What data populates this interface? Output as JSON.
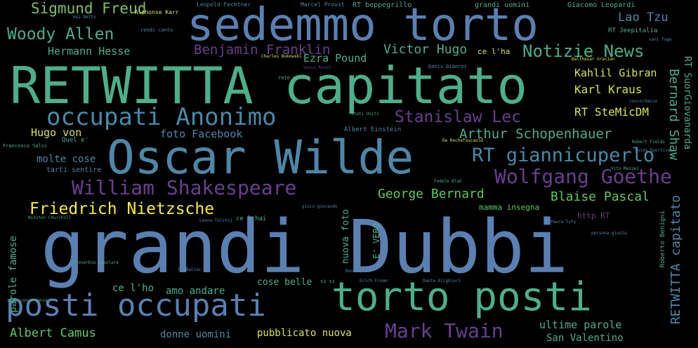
{
  "palette": {
    "yellow": "#f7e850",
    "green": "#5ec962",
    "teal": "#4fae8a",
    "blue": "#5b7fb0",
    "purple": "#6a3e8e",
    "darkblue": "#3e5a8c",
    "background": "#000000"
  },
  "words": [
    {
      "text": "grandi Dubbi",
      "color": "#5b7fb0"
    },
    {
      "text": "RETWITTA capitato",
      "color": "#4fae8a"
    },
    {
      "text": "sedemmo torto",
      "color": "#5b7fb0"
    },
    {
      "text": "Oscar Wilde",
      "color": "#4f86a8"
    },
    {
      "text": "torto posti",
      "color": "#4fae8a"
    },
    {
      "text": "posti occupati",
      "color": "#5b7fb0"
    },
    {
      "text": "occupati Anonimo",
      "color": "#4a88a6"
    },
    {
      "text": "William Shakespeare",
      "color": "#6a3e8e"
    },
    {
      "text": "Wolfgang Goethe",
      "color": "#6a3e8e"
    },
    {
      "text": "Mark Twain",
      "color": "#6a3e8e"
    },
    {
      "text": "RT giannicuperlo",
      "color": "#4a88a6"
    },
    {
      "text": "Friedrich Nietzsche",
      "color": "#f7e850"
    },
    {
      "text": "Woody Allen",
      "color": "#4fae8a"
    },
    {
      "text": "Notizie News",
      "color": "#4fae8a"
    },
    {
      "text": "Sigmund Freud",
      "color": "#7fbf66"
    },
    {
      "text": "Benjamin Franklin",
      "color": "#6a3e8e"
    },
    {
      "text": "Stanislaw Lec",
      "color": "#6a3e8e"
    },
    {
      "text": "Arthur Schopenhauer",
      "color": "#4fae8a"
    },
    {
      "text": "George Bernard",
      "color": "#5ec962"
    },
    {
      "text": "Blaise Pascal",
      "color": "#5ec962"
    },
    {
      "text": "Victor Hugo",
      "color": "#4fae8a"
    },
    {
      "text": "Ezra Pound",
      "color": "#4fae8a"
    },
    {
      "text": "Hermann Hesse",
      "color": "#4fae8a"
    },
    {
      "text": "Lao Tzu",
      "color": "#4f86a8"
    },
    {
      "text": "Kahlil Gibran",
      "color": "#d8e25a"
    },
    {
      "text": "Karl Kraus",
      "color": "#d8e25a"
    },
    {
      "text": "RT SteMicDM",
      "color": "#d8e25a"
    },
    {
      "text": "Hugo von",
      "color": "#d8e25a"
    },
    {
      "text": "foto Facebook",
      "color": "#4f86a8"
    },
    {
      "text": "molte cose",
      "color": "#4f86a8"
    },
    {
      "text": "Albert Camus",
      "color": "#5ec962"
    },
    {
      "text": "donne uomini",
      "color": "#4f86a8"
    },
    {
      "text": "pubblicato nuova",
      "color": "#d8e25a"
    },
    {
      "text": "ultime parole",
      "color": "#4fae8a"
    },
    {
      "text": "San Valentino",
      "color": "#4fae8a"
    },
    {
      "text": "amo andare",
      "color": "#4fae8a"
    },
    {
      "text": "ce l'ho",
      "color": "#4fae8a"
    },
    {
      "text": "cose belle",
      "color": "#4fae8a"
    },
    {
      "text": "Bernard Shaw",
      "color": "#4fae8a"
    },
    {
      "text": "RETWITTA capitato",
      "color": "#4f86a8"
    },
    {
      "text": "RT SuorGiovanarda",
      "color": "#4fae8a"
    },
    {
      "text": "nuova foto",
      "color": "#4fae8a"
    },
    {
      "text": "parole famose",
      "color": "#4fae8a"
    },
    {
      "text": "grandi uomini",
      "color": "#4fae8a"
    },
    {
      "text": "RT beppegrillo",
      "color": "#4fae8a"
    },
    {
      "text": "Giacomo Leopardi",
      "color": "#4fae8a"
    },
    {
      "text": "RT Jeepitalia",
      "color": "#4fae8a"
    },
    {
      "text": "ce l'ha",
      "color": "#d8e25a"
    },
    {
      "text": "Albert Einstein",
      "color": "#4f86a8"
    },
    {
      "text": "tarti sentire",
      "color": "#4f86a8"
    },
    {
      "text": "http RT",
      "color": "#6a3e8e"
    },
    {
      "text": "E' VERO",
      "color": "#4fae8a"
    },
    {
      "text": "mamma insegna",
      "color": "#5ec962"
    },
    {
      "text": "Alphonse Karr",
      "color": "#d8e25a"
    },
    {
      "text": "Leopold Fechtner",
      "color": "#4f86a8"
    },
    {
      "text": "Marcel Proust",
      "color": "#4f86a8"
    },
    {
      "text": "rendi conto",
      "color": "#4f86a8"
    },
    {
      "text": "Charles Bukowski",
      "color": "#d8e25a"
    },
    {
      "text": "Denis Diderot",
      "color": "#4f86a8"
    },
    {
      "text": "Francesco Salvi",
      "color": "#4fae8a"
    },
    {
      "text": "Quel e'",
      "color": "#4fae8a"
    },
    {
      "text": "Winston Churchill",
      "color": "#4fae8a"
    },
    {
      "text": "Leone Tolstoj",
      "color": "#4f86a8"
    },
    {
      "text": "Erich Fromm",
      "color": "#4f86a8"
    },
    {
      "text": "Dante Alighieri",
      "color": "#4f86a8"
    },
    {
      "text": "gioco giocando",
      "color": "#4f86a8"
    },
    {
      "text": "Paura Tufy",
      "color": "#4f86a8"
    },
    {
      "text": "si si",
      "color": "#4fae8a"
    },
    {
      "text": "Robert Fields",
      "color": "#4fae8a"
    },
    {
      "text": "Proverbio popolare",
      "color": "#4fae8a"
    },
    {
      "text": "De Balzac",
      "color": "#4f86a8"
    },
    {
      "text": "Roberto Benigni",
      "color": "#4fae8a"
    },
    {
      "text": "persona giusta",
      "color": "#4f86a8"
    },
    {
      "text": "Balthasar Gracian",
      "color": "#d8e25a"
    },
    {
      "text": "De Rochefoucauld",
      "color": "#d8e25a"
    },
    {
      "text": "Hai Detto",
      "color": "#4f86a8"
    },
    {
      "text": "rete giusta",
      "color": "#4fae8a"
    },
    {
      "text": "Vito Mazzei",
      "color": "#4fae8a"
    },
    {
      "text": "ce l hai",
      "color": "#4fae8a"
    },
    {
      "text": "concordanza",
      "color": "#4f86a8"
    },
    {
      "text": "Vasco Rossi",
      "color": "#6a3e8e"
    },
    {
      "text": "creo concordanza",
      "color": "#4fae8a"
    },
    {
      "text": "sant fuge",
      "color": "#4f86a8"
    },
    {
      "text": "Stati Uniti",
      "color": "#4fae8a"
    },
    {
      "text": "Fedele Blah",
      "color": "#4fae8a"
    },
    {
      "text": "Nuovo post",
      "color": "#4f86a8"
    },
    {
      "text": "guida Sportiva",
      "color": "#4f86a8"
    }
  ]
}
